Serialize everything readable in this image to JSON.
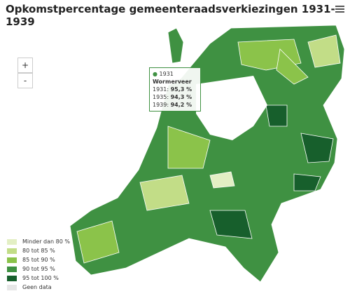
{
  "header": {
    "title": "Opkomstpercentage gemeenteraadsverkiezingen 1931-1939"
  },
  "zoom": {
    "in": "+",
    "out": "-"
  },
  "tooltip": {
    "series": "1931",
    "name": "Wormerveer",
    "rows": [
      {
        "year": "1931:",
        "value": "95,3 %"
      },
      {
        "year": "1935:",
        "value": "94,3 %"
      },
      {
        "year": "1939:",
        "value": "94,2 %"
      }
    ]
  },
  "legend": [
    {
      "label": "Minder dan 80 %",
      "color": "#e3efc4"
    },
    {
      "label": "80 tot 85 %",
      "color": "#c2dd87"
    },
    {
      "label": "85 tot 90 %",
      "color": "#8bc34a"
    },
    {
      "label": "90 tot 95 %",
      "color": "#3f9142"
    },
    {
      "label": "95 tot 100 %",
      "color": "#175f2c"
    },
    {
      "label": "Geen data",
      "color": "#e6e6e6"
    }
  ]
}
